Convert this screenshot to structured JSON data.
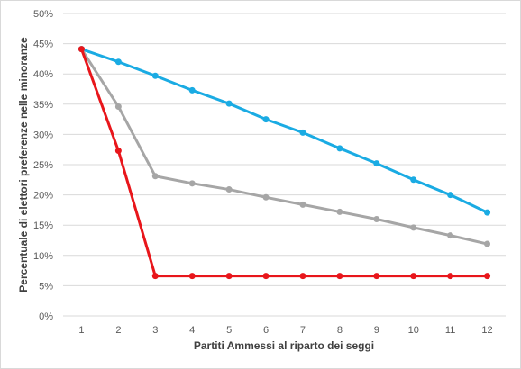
{
  "chart_data": {
    "type": "line",
    "title": "",
    "xlabel": "Partiti Ammessi al riparto dei seggi",
    "ylabel": "Percentuale di elettori preferenze nelle minoranze",
    "x": [
      1,
      2,
      3,
      4,
      5,
      6,
      7,
      8,
      9,
      10,
      11,
      12
    ],
    "x_tick_labels": [
      "1",
      "2",
      "3",
      "4",
      "5",
      "6",
      "7",
      "8",
      "9",
      "10",
      "11",
      "12"
    ],
    "ylim": [
      0,
      50
    ],
    "y_ticks": [
      0,
      5,
      10,
      15,
      20,
      25,
      30,
      35,
      40,
      45,
      50
    ],
    "y_tick_labels": [
      "0%",
      "5%",
      "10%",
      "15%",
      "20%",
      "25%",
      "30%",
      "35%",
      "40%",
      "45%",
      "50%"
    ],
    "grid": "horizontal",
    "legend": "none",
    "series": [
      {
        "color": "#1aabe3",
        "values": [
          44.1,
          42.0,
          39.7,
          37.3,
          35.1,
          32.5,
          30.3,
          27.7,
          25.2,
          22.5,
          20.0,
          17.1
        ]
      },
      {
        "color": "#a6a6a6",
        "values": [
          44.1,
          34.6,
          23.1,
          21.9,
          20.9,
          19.6,
          18.4,
          17.2,
          16.0,
          14.6,
          13.3,
          11.9
        ]
      },
      {
        "color": "#e8161b",
        "values": [
          44.1,
          27.3,
          6.6,
          6.6,
          6.6,
          6.6,
          6.6,
          6.6,
          6.6,
          6.6,
          6.6,
          6.6
        ]
      }
    ]
  }
}
